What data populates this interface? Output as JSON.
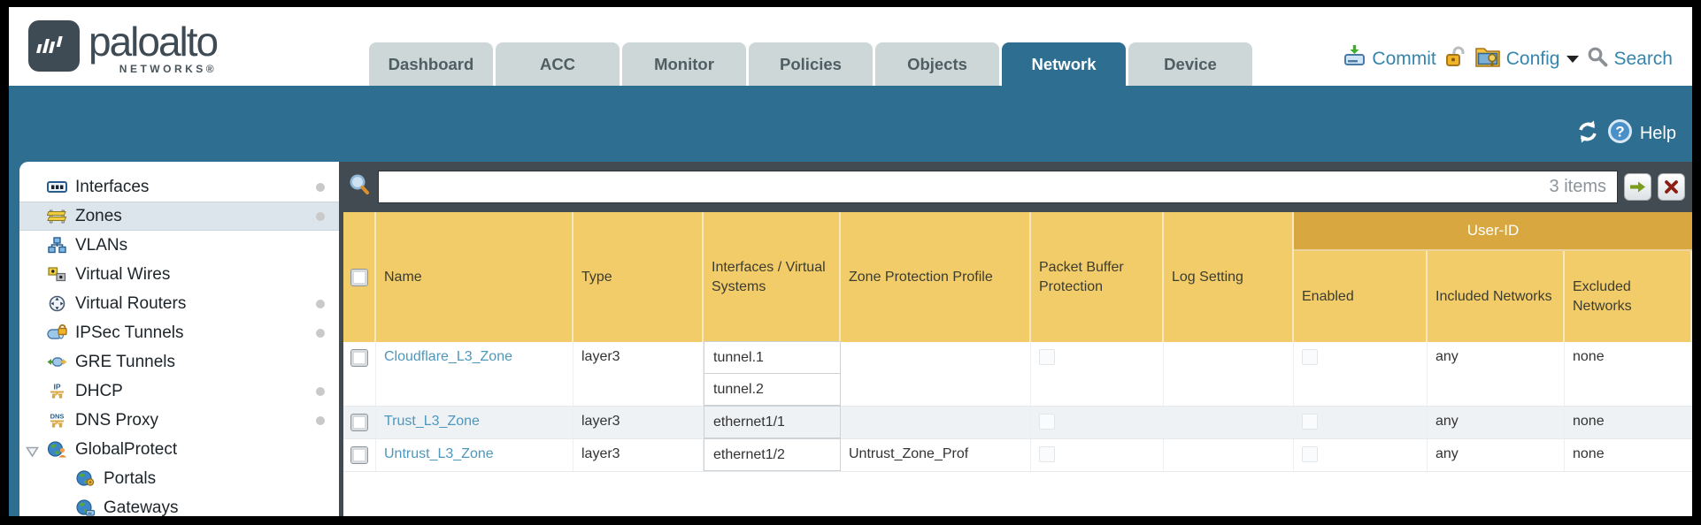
{
  "brand": {
    "name": "paloalto",
    "sub": "NETWORKS®"
  },
  "tabs": [
    {
      "label": "Dashboard",
      "active": false
    },
    {
      "label": "ACC",
      "active": false
    },
    {
      "label": "Monitor",
      "active": false
    },
    {
      "label": "Policies",
      "active": false
    },
    {
      "label": "Objects",
      "active": false
    },
    {
      "label": "Network",
      "active": true
    },
    {
      "label": "Device",
      "active": false
    }
  ],
  "toolbar": {
    "commit_label": "Commit",
    "config_label": "Config",
    "search_label": "Search"
  },
  "band": {
    "help_label": "Help"
  },
  "sidebar": {
    "items": [
      {
        "label": "Interfaces",
        "icon": "interfaces-icon",
        "dot": true
      },
      {
        "label": "Zones",
        "icon": "zones-icon",
        "dot": true,
        "selected": true
      },
      {
        "label": "VLANs",
        "icon": "vlans-icon",
        "dot": false
      },
      {
        "label": "Virtual Wires",
        "icon": "virtual-wires-icon",
        "dot": false
      },
      {
        "label": "Virtual Routers",
        "icon": "virtual-routers-icon",
        "dot": true
      },
      {
        "label": "IPSec Tunnels",
        "icon": "ipsec-tunnels-icon",
        "dot": true
      },
      {
        "label": "GRE Tunnels",
        "icon": "gre-tunnels-icon",
        "dot": false
      },
      {
        "label": "DHCP",
        "icon": "dhcp-icon",
        "dot": true
      },
      {
        "label": "DNS Proxy",
        "icon": "dns-proxy-icon",
        "dot": true
      },
      {
        "label": "GlobalProtect",
        "icon": "globalprotect-icon",
        "dot": false,
        "expandable": true
      },
      {
        "label": "Portals",
        "icon": "portals-icon",
        "dot": false,
        "child": true
      },
      {
        "label": "Gateways",
        "icon": "gateways-icon",
        "dot": false,
        "child": true
      }
    ]
  },
  "filter": {
    "value": "",
    "count_text": "3 items"
  },
  "table": {
    "group_header": "User-ID",
    "columns": {
      "name": "Name",
      "type": "Type",
      "interfaces": "Interfaces / Virtual Systems",
      "zone_protection_profile": "Zone Protection Profile",
      "packet_buffer_protection": "Packet Buffer Protection",
      "log_setting": "Log Setting",
      "enabled": "Enabled",
      "included_networks": "Included Networks",
      "excluded_networks": "Excluded Networks"
    },
    "rows": [
      {
        "name": "Cloudflare_L3_Zone",
        "type": "layer3",
        "interfaces": [
          "tunnel.1",
          "tunnel.2"
        ],
        "zone_protection_profile": "",
        "packet_buffer_protection": false,
        "log_setting": "",
        "user_id_enabled": false,
        "included_networks": "any",
        "excluded_networks": "none"
      },
      {
        "name": "Trust_L3_Zone",
        "type": "layer3",
        "interfaces": [
          "ethernet1/1"
        ],
        "zone_protection_profile": "",
        "packet_buffer_protection": false,
        "log_setting": "",
        "user_id_enabled": false,
        "included_networks": "any",
        "excluded_networks": "none"
      },
      {
        "name": "Untrust_L3_Zone",
        "type": "layer3",
        "interfaces": [
          "ethernet1/2"
        ],
        "zone_protection_profile": "Untrust_Zone_Prof",
        "packet_buffer_protection": false,
        "log_setting": "",
        "user_id_enabled": false,
        "included_networks": "any",
        "excluded_networks": "none"
      }
    ]
  },
  "colors": {
    "accent_teal": "#2e6e90",
    "header_gold": "#f2cc68",
    "group_band_gold": "#d8a73f",
    "toolbar_link_blue": "#3585ad",
    "zone_link_blue": "#4e97bb",
    "strip_dark": "#424b52"
  }
}
